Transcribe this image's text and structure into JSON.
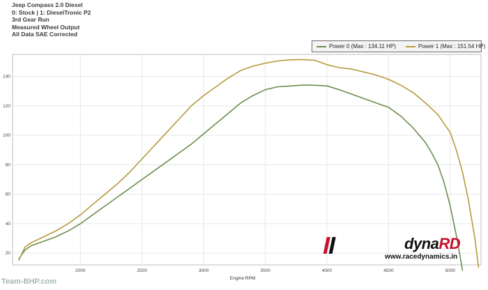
{
  "header": {
    "line1": "Jeep Compass 2.0 Diesel",
    "line2": "0: Stock | 1: DieselTronic P2",
    "line3": "3rd Gear Run",
    "line4": "Measured Wheel Output",
    "line5": "All Data SAE Corrected"
  },
  "legend": {
    "item0": "Power 0 (Max : 134.11 HP)",
    "item1": "Power 1 (Max : 151.54 HP)"
  },
  "logo": {
    "brand_prefix": "dyna",
    "brand_suffix": "RD",
    "url": "www.racedynamics.in"
  },
  "watermark": "Team-BHP.com",
  "colors": {
    "power0": "#6b8e4e",
    "power1": "#b59a3c",
    "grid": "#e6e6e6",
    "brand_red": "#c8102e"
  },
  "chart_data": {
    "type": "line",
    "xlabel": "Engine RPM",
    "ylabel": "",
    "xlim": [
      1450,
      5250
    ],
    "ylim": [
      12,
      155
    ],
    "x_ticks": [
      "2000",
      "2500",
      "3000",
      "3500",
      "4000",
      "4500",
      "5000"
    ],
    "y_ticks": [
      "20",
      "40",
      "60",
      "80",
      "100",
      "120",
      "140"
    ],
    "series": [
      {
        "name": "Power 0 (Max : 134.11 HP)",
        "color": "#6b8e4e",
        "x": [
          1500,
          1550,
          1600,
          1700,
          1800,
          1900,
          2000,
          2100,
          2200,
          2300,
          2400,
          2500,
          2600,
          2700,
          2800,
          2900,
          3000,
          3100,
          3200,
          3300,
          3400,
          3500,
          3600,
          3700,
          3800,
          3900,
          4000,
          4100,
          4200,
          4300,
          4400,
          4500,
          4600,
          4700,
          4800,
          4850,
          4900,
          4950,
          5000,
          5050,
          5080,
          5100
        ],
        "y": [
          16,
          22,
          25,
          28,
          31,
          35,
          40,
          46,
          52,
          58,
          64,
          70,
          76,
          82,
          88,
          94,
          101,
          108,
          115,
          122,
          127,
          131,
          133,
          133.5,
          134.1,
          134,
          133.6,
          131,
          128,
          125,
          122,
          119,
          113,
          105,
          95,
          88,
          80,
          68,
          52,
          32,
          18,
          8
        ]
      },
      {
        "name": "Power 1 (Max : 151.54 HP)",
        "color": "#b59a3c",
        "x": [
          1500,
          1550,
          1600,
          1700,
          1800,
          1900,
          2000,
          2100,
          2200,
          2300,
          2400,
          2500,
          2600,
          2700,
          2800,
          2900,
          3000,
          3100,
          3200,
          3300,
          3400,
          3500,
          3600,
          3700,
          3800,
          3900,
          4000,
          4100,
          4200,
          4300,
          4400,
          4500,
          4600,
          4700,
          4800,
          4900,
          5000,
          5050,
          5100,
          5150,
          5200,
          5230
        ],
        "y": [
          15,
          24,
          27,
          31,
          35,
          40,
          46,
          53,
          60,
          67,
          75,
          84,
          93,
          102,
          111,
          120,
          127,
          133,
          139,
          144,
          147,
          149,
          150.5,
          151.3,
          151.5,
          151,
          148,
          146,
          145,
          143,
          141,
          138,
          134,
          129,
          122,
          114,
          102,
          90,
          75,
          55,
          30,
          10
        ]
      }
    ]
  }
}
